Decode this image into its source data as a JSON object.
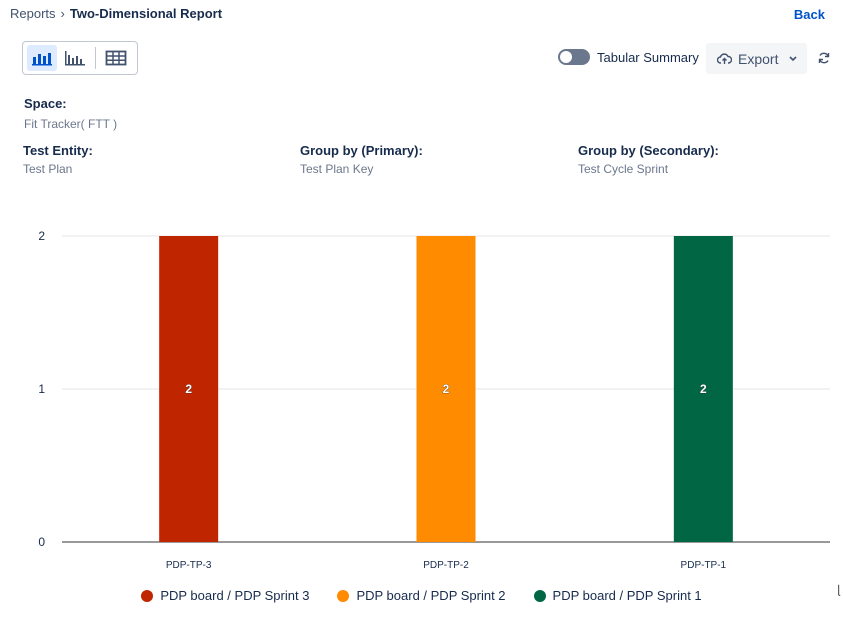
{
  "breadcrumb": {
    "parent": "Reports",
    "current": "Two-Dimensional Report"
  },
  "back_label": "Back",
  "controls": {
    "tabular_summary_label": "Tabular Summary",
    "export_label": "Export",
    "tabular_summary_on": false
  },
  "info": {
    "space_label": "Space:",
    "space_value": "Fit Tracker( FTT )",
    "entity_label": "Test Entity:",
    "entity_value": "Test Plan",
    "primary_label": "Group by (Primary):",
    "primary_value": "Test Plan Key",
    "secondary_label": "Group by (Secondary):",
    "secondary_value": "Test Cycle Sprint"
  },
  "colors": {
    "red": "#bf2600",
    "orange": "#ff8b00",
    "green": "#006644",
    "accent": "#0052cc"
  },
  "chart_data": {
    "type": "bar",
    "title": "",
    "xlabel": "",
    "ylabel": "",
    "ylim": [
      0,
      2
    ],
    "yticks": [
      "0",
      "1",
      "2"
    ],
    "categories": [
      "PDP-TP-3",
      "PDP-TP-2",
      "PDP-TP-1"
    ],
    "series": [
      {
        "name": "PDP board / PDP Sprint 3",
        "color": "#bf2600",
        "values": [
          2,
          null,
          null
        ]
      },
      {
        "name": "PDP board / PDP Sprint 2",
        "color": "#ff8b00",
        "values": [
          null,
          2,
          null
        ]
      },
      {
        "name": "PDP board / PDP Sprint 1",
        "color": "#006644",
        "values": [
          null,
          null,
          2
        ]
      }
    ],
    "data_labels": [
      "2",
      "2",
      "2"
    ]
  }
}
